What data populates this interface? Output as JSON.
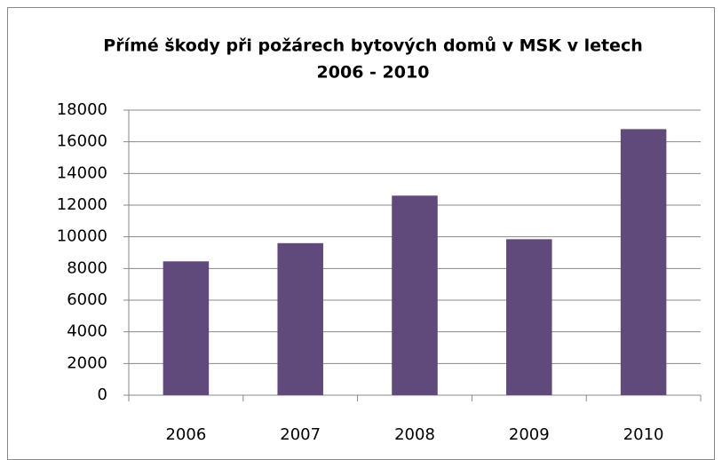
{
  "chart_data": {
    "type": "bar",
    "title": [
      "Přímé škody při požárech bytových domů v MSK v letech",
      "2006 - 2010"
    ],
    "categories": [
      "2006",
      "2007",
      "2008",
      "2009",
      "2010"
    ],
    "values": [
      8450,
      9600,
      12600,
      9850,
      16800
    ],
    "color": "#604a7b",
    "ylim": [
      0,
      18000
    ],
    "yticks": [
      0,
      2000,
      4000,
      6000,
      8000,
      10000,
      12000,
      14000,
      16000,
      18000
    ],
    "grid": true
  }
}
